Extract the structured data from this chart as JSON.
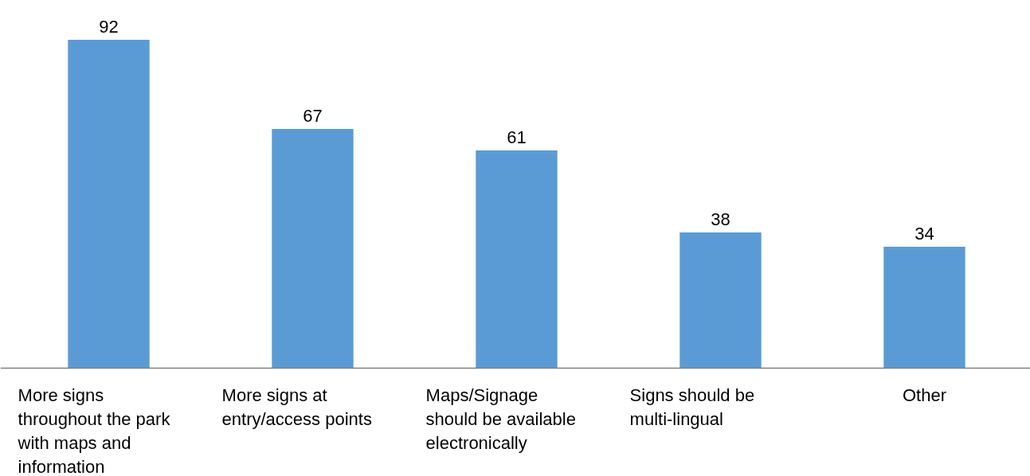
{
  "chart_data": {
    "type": "bar",
    "categories": [
      "More signs throughout the park with maps and information",
      "More signs at entry/access points",
      "Maps/Signage should be available electronically",
      "Signs should be multi-lingual",
      "Other"
    ],
    "values": [
      92,
      67,
      61,
      38,
      34
    ],
    "color": "#5b9bd5",
    "data_labels": true
  }
}
